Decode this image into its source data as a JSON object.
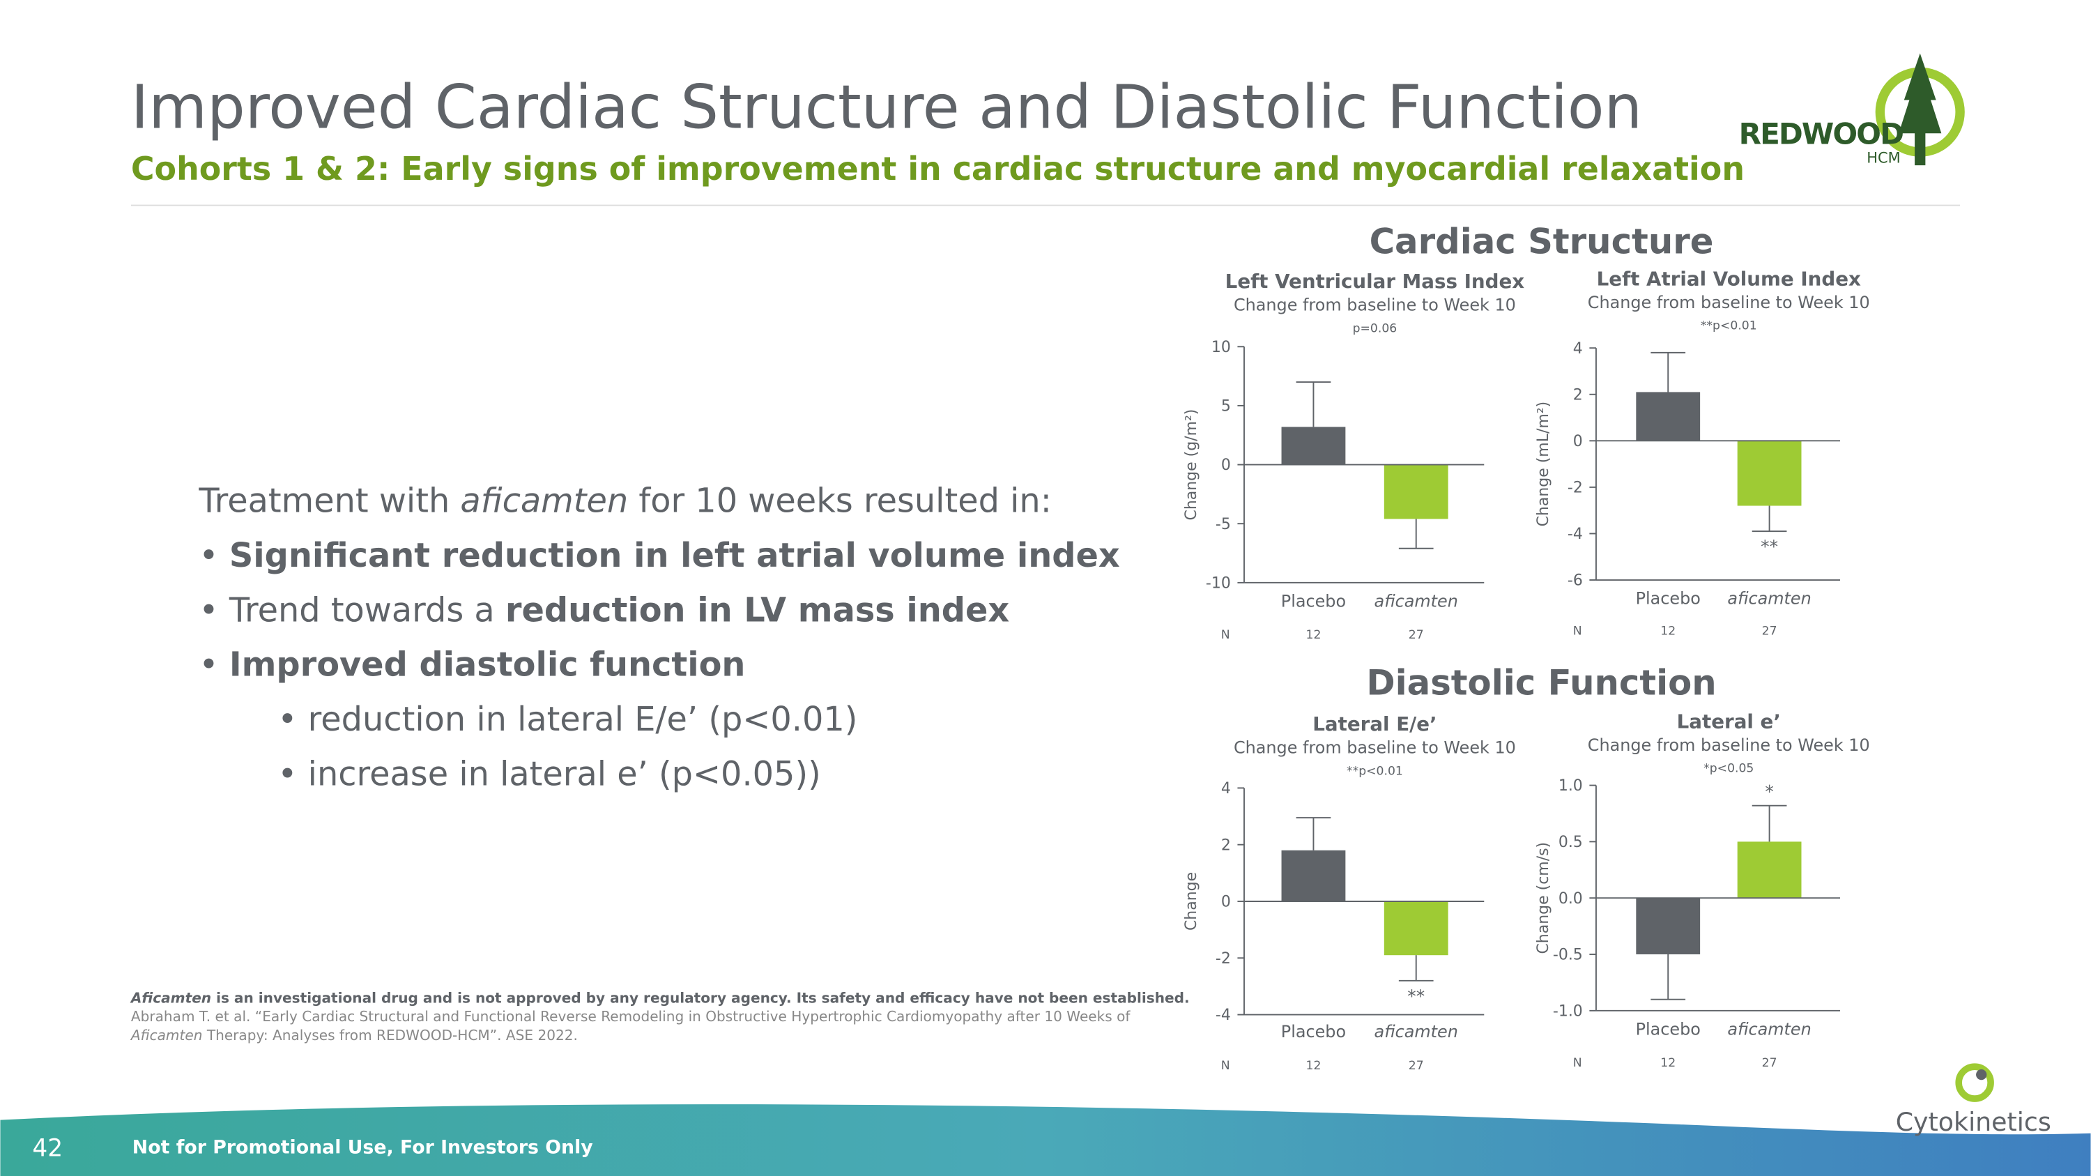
{
  "header": {
    "title": "Improved Cardiac Structure and Diastolic Function",
    "subtitle": "Cohorts 1 & 2: Early signs of improvement in cardiac structure and myocardial relaxation",
    "logo": "REDWOOD",
    "logo_sub": "HCM"
  },
  "body": {
    "intro": [
      "Treatment with ",
      "aficamten",
      " for 10 weeks resulted in:"
    ],
    "bullets": [
      [
        "Significant reduction in left atrial volume index"
      ],
      [
        "Trend towards a ",
        "reduction in LV mass index"
      ],
      [
        "Improved diastolic function"
      ]
    ],
    "sub_bullets": [
      "reduction in lateral E/e’ (p<0.01)",
      "increase in lateral e’ (p<0.05))"
    ]
  },
  "footnote": {
    "line1": [
      "Aficamten",
      " is an investigational drug and is not approved by any regulatory agency. Its safety and efficacy have not been established."
    ],
    "line2": "Abraham T. et al. “Early Cardiac Structural and Functional Reverse Remodeling in Obstructive Hypertrophic Cardiomyopathy after 10 Weeks of",
    "line3": [
      "Aficamten",
      " Therapy: Analyses from REDWOOD-HCM”. ASE 2022."
    ]
  },
  "sections": [
    "Cardiac Structure",
    "Diastolic Function"
  ],
  "footer": {
    "page": "42",
    "note": "Not for Promotional Use, For Investors Only",
    "company": "Cytokinetics"
  },
  "chart_data": [
    {
      "type": "bar",
      "title": "Left Ventricular Mass Index",
      "subtitle": "Change from baseline to Week 10",
      "annotation": "p=0.06",
      "y_label": "Change (g/m²)",
      "categories": [
        "Placebo",
        "aficamten"
      ],
      "values": [
        3.2,
        -4.6
      ],
      "errors": [
        3.8,
        2.5
      ],
      "significance": [
        null,
        null
      ],
      "n_label": "N",
      "n": [
        "12",
        "27"
      ],
      "ylim": [
        -10,
        10
      ],
      "yticks": [
        -10,
        -5,
        0,
        5,
        10
      ],
      "colors": [
        "#5f6368",
        "#9ecb34"
      ]
    },
    {
      "type": "bar",
      "title": "Left Atrial Volume Index",
      "subtitle": "Change from baseline to Week 10",
      "annotation": "**p<0.01",
      "y_label": "Change (mL/m²)",
      "categories": [
        "Placebo",
        "aficamten"
      ],
      "values": [
        2.1,
        -2.8
      ],
      "errors": [
        1.7,
        1.1
      ],
      "significance": [
        null,
        "**"
      ],
      "n_label": "N",
      "n": [
        "12",
        "27"
      ],
      "ylim": [
        -6,
        4
      ],
      "yticks": [
        -6,
        -4,
        -2,
        0,
        2,
        4
      ],
      "colors": [
        "#5f6368",
        "#9ecb34"
      ]
    },
    {
      "type": "bar",
      "title": "Lateral E/e’",
      "subtitle": "Change from baseline to Week 10",
      "annotation": "**p<0.01",
      "y_label": "Change",
      "categories": [
        "Placebo",
        "aficamten"
      ],
      "values": [
        1.8,
        -1.9
      ],
      "errors": [
        1.15,
        0.9
      ],
      "significance": [
        null,
        "**"
      ],
      "n_label": "N",
      "n": [
        "12",
        "27"
      ],
      "ylim": [
        -4,
        4
      ],
      "yticks": [
        -4,
        -2,
        0,
        2,
        4
      ],
      "colors": [
        "#5f6368",
        "#9ecb34"
      ]
    },
    {
      "type": "bar",
      "title": "Lateral e’",
      "subtitle": "Change from baseline to Week 10",
      "annotation": "*p<0.05",
      "y_label": "Change (cm/s)",
      "categories": [
        "Placebo",
        "aficamten"
      ],
      "values": [
        -0.5,
        0.5
      ],
      "errors": [
        0.4,
        0.32
      ],
      "significance": [
        null,
        "*"
      ],
      "n_label": "N",
      "n": [
        "12",
        "27"
      ],
      "ylim": [
        -1,
        1
      ],
      "yticks": [
        {
          "value": -1,
          "label": "-1.0"
        },
        -0.5,
        {
          "value": 0,
          "label": "0.0"
        },
        0.5,
        {
          "value": 1,
          "label": "1.0"
        }
      ],
      "colors": [
        "#5f6368",
        "#9ecb34"
      ]
    }
  ]
}
